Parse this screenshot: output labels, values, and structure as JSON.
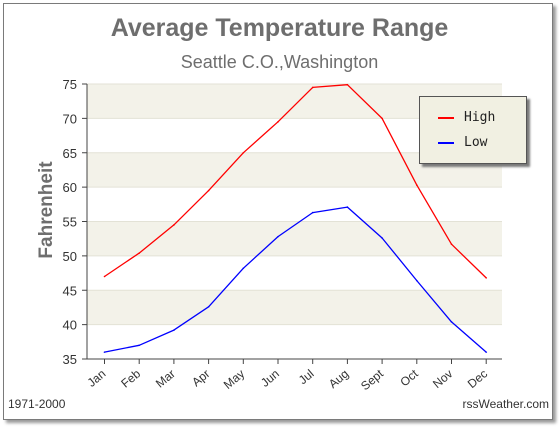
{
  "chart_data": {
    "type": "line",
    "title": "Average Temperature Range",
    "subtitle": "Seattle C.O.,Washington",
    "xlabel": "",
    "ylabel": "Fahrenheit",
    "categories": [
      "Jan",
      "Feb",
      "Mar",
      "Apr",
      "May",
      "Jun",
      "Jul",
      "Aug",
      "Sept",
      "Oct",
      "Nov",
      "Dec"
    ],
    "ylim": [
      35,
      75
    ],
    "yticks": [
      35,
      40,
      45,
      50,
      55,
      60,
      65,
      70,
      75
    ],
    "grid": "horizontal bands",
    "legend_position": "top-right",
    "series": [
      {
        "name": "High",
        "color": "#ff0000",
        "values": [
          47,
          50.4,
          54.5,
          59.5,
          65,
          69.5,
          74.5,
          74.9,
          70,
          60.3,
          51.7,
          46.8
        ]
      },
      {
        "name": "Low",
        "color": "#0000ff",
        "values": [
          36,
          37,
          39.2,
          42.6,
          48.2,
          52.8,
          56.3,
          57.1,
          52.6,
          46.4,
          40.4,
          36
        ]
      }
    ],
    "band_colors": [
      "#ffffff",
      "#f3f2e9"
    ],
    "source_left": "1971-2000",
    "source_right": "rssWeather.com"
  }
}
